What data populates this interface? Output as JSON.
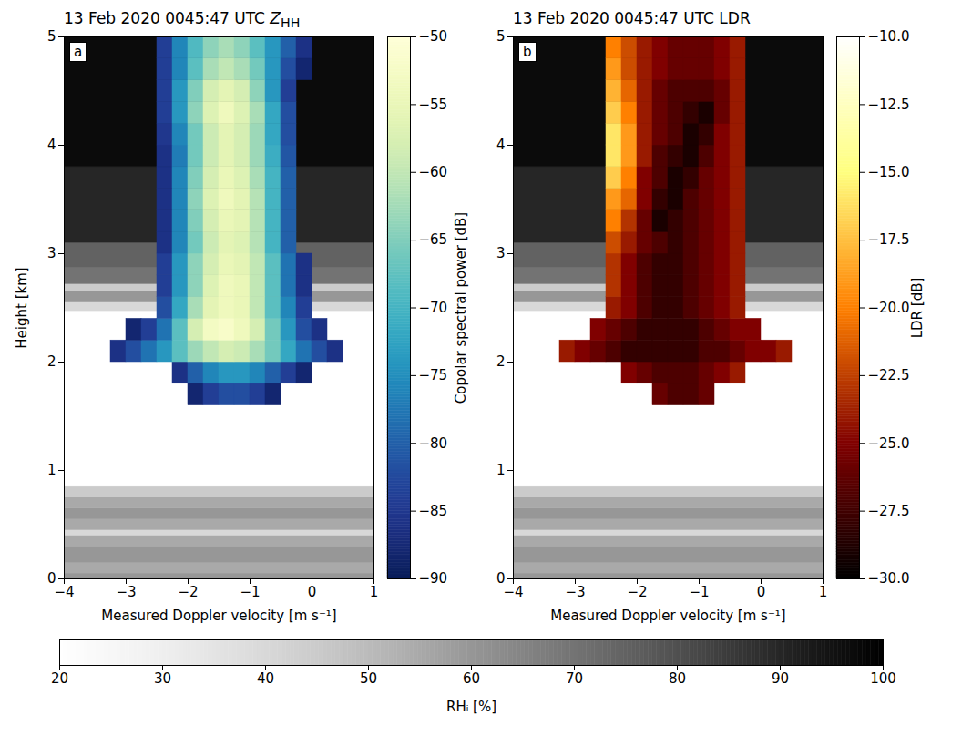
{
  "chart_data": [
    {
      "type": "heatmap",
      "panel": "a",
      "title": "13 Feb 2020 0045:47 UTC",
      "title_symbol": "Z",
      "title_symbol_subscript": "HH",
      "x_label": "Measured Doppler velocity [m s⁻¹]",
      "y_label": "Height [km]",
      "xlim": [
        -4,
        1
      ],
      "xticks": [
        -4,
        -3,
        -2,
        -1,
        0,
        1
      ],
      "ylim": [
        0,
        5
      ],
      "yticks": [
        0,
        1,
        2,
        3,
        4,
        5
      ],
      "velocities": [
        -3.125,
        -2.875,
        -2.625,
        -2.375,
        -2.125,
        -1.875,
        -1.625,
        -1.375,
        -1.125,
        -0.875,
        -0.625,
        -0.375,
        -0.125,
        0.125,
        0.375,
        0.625
      ],
      "heights": [
        1.7,
        1.9,
        2.1,
        2.3,
        2.5,
        2.7,
        2.9,
        3.1,
        3.3,
        3.5,
        3.7,
        3.9,
        4.1,
        4.3,
        4.5,
        4.7,
        4.9
      ],
      "values": [
        [
          null,
          null,
          null,
          null,
          null,
          -88,
          -84,
          -82,
          -82,
          -84,
          -88,
          null,
          null,
          null,
          null,
          null
        ],
        [
          null,
          null,
          null,
          null,
          -86,
          -80,
          -76,
          -74,
          -74,
          -76,
          -80,
          -84,
          -88,
          null,
          null,
          null
        ],
        [
          -86,
          -82,
          -78,
          -74,
          -68,
          -63,
          -60,
          -58,
          -59,
          -62,
          -66,
          -72,
          -78,
          -82,
          -86,
          null
        ],
        [
          null,
          -88,
          -84,
          -78,
          -68,
          -58,
          -53,
          -52,
          -54,
          -58,
          -66,
          -74,
          -82,
          -86,
          null,
          null
        ],
        [
          null,
          null,
          null,
          -82,
          -72,
          -62,
          -56,
          -54,
          -55,
          -60,
          -68,
          -76,
          -84,
          null,
          null,
          null
        ],
        [
          null,
          null,
          null,
          -84,
          -74,
          -64,
          -57,
          -54,
          -55,
          -60,
          -68,
          -78,
          -86,
          null,
          null,
          null
        ],
        [
          null,
          null,
          null,
          -84,
          -74,
          -64,
          -58,
          -55,
          -56,
          -60,
          -68,
          -78,
          -86,
          null,
          null,
          null
        ],
        [
          null,
          null,
          null,
          -86,
          -76,
          -66,
          -59,
          -56,
          -57,
          -61,
          -70,
          -80,
          null,
          null,
          null,
          null
        ],
        [
          null,
          null,
          null,
          -86,
          -76,
          -65,
          -58,
          -55,
          -56,
          -61,
          -70,
          -80,
          null,
          null,
          null,
          null
        ],
        [
          null,
          null,
          null,
          -86,
          -76,
          -64,
          -57,
          -54,
          -56,
          -61,
          -70,
          -80,
          null,
          null,
          null,
          null
        ],
        [
          null,
          null,
          null,
          -86,
          -76,
          -65,
          -58,
          -55,
          -57,
          -62,
          -70,
          -80,
          null,
          null,
          null,
          null
        ],
        [
          null,
          null,
          null,
          -86,
          -77,
          -66,
          -59,
          -56,
          -58,
          -63,
          -71,
          -81,
          null,
          null,
          null,
          null
        ],
        [
          null,
          null,
          null,
          -85,
          -76,
          -66,
          -59,
          -56,
          -58,
          -63,
          -72,
          -82,
          null,
          null,
          null,
          null
        ],
        [
          null,
          null,
          null,
          -84,
          -74,
          -64,
          -57,
          -54,
          -57,
          -62,
          -72,
          -82,
          null,
          null,
          null,
          null
        ],
        [
          null,
          null,
          null,
          -84,
          -74,
          -65,
          -58,
          -56,
          -58,
          -64,
          -74,
          -84,
          null,
          null,
          null,
          null
        ],
        [
          null,
          null,
          null,
          -84,
          -76,
          -68,
          -62,
          -60,
          -62,
          -66,
          -74,
          -82,
          -88,
          null,
          null,
          null
        ],
        [
          null,
          null,
          null,
          -84,
          -76,
          -69,
          -64,
          -62,
          -64,
          -68,
          -74,
          -80,
          -86,
          null,
          null,
          null
        ]
      ],
      "colorbar": {
        "label": "Copolar spectral power [dB]",
        "range": [
          -90,
          -50
        ],
        "ticks": [
          -90,
          -85,
          -80,
          -75,
          -70,
          -65,
          -60,
          -55,
          -50
        ]
      }
    },
    {
      "type": "heatmap",
      "panel": "b",
      "title": "13 Feb 2020 0045:47 UTC LDR",
      "x_label": "Measured Doppler velocity [m s⁻¹]",
      "xlim": [
        -4,
        1
      ],
      "xticks": [
        -4,
        -3,
        -2,
        -1,
        0,
        1
      ],
      "ylim": [
        0,
        5
      ],
      "yticks": [
        0,
        1,
        2,
        3,
        4,
        5
      ],
      "velocities": [
        -3.125,
        -2.875,
        -2.625,
        -2.375,
        -2.125,
        -1.875,
        -1.625,
        -1.375,
        -1.125,
        -0.875,
        -0.625,
        -0.375,
        -0.125,
        0.125,
        0.375,
        0.625
      ],
      "heights": [
        1.7,
        1.9,
        2.1,
        2.3,
        2.5,
        2.7,
        2.9,
        3.1,
        3.3,
        3.5,
        3.7,
        3.9,
        4.1,
        4.3,
        4.5,
        4.7,
        4.9
      ],
      "values": [
        [
          null,
          null,
          null,
          null,
          null,
          null,
          -26,
          -27,
          -27,
          -26,
          null,
          null,
          null,
          null,
          null,
          null
        ],
        [
          null,
          null,
          null,
          null,
          -25,
          -26,
          -27,
          -27,
          -27,
          -26,
          -25,
          -24,
          null,
          null,
          null,
          null
        ],
        [
          -24,
          -25,
          -26,
          -27,
          -28,
          -28,
          -28,
          -28,
          -28,
          -27,
          -27,
          -26,
          -25,
          -25,
          -24,
          null
        ],
        [
          null,
          null,
          -25,
          -26,
          -27,
          -28,
          -28,
          -28,
          -28,
          -27,
          -26,
          -25,
          -25,
          null,
          null,
          null
        ],
        [
          null,
          null,
          null,
          -24,
          -25,
          -27,
          -28,
          -28,
          -27,
          -26,
          -25,
          -24,
          null,
          null,
          null,
          null
        ],
        [
          null,
          null,
          null,
          -23,
          -25,
          -27,
          -28,
          -28,
          -27,
          -26,
          -25,
          -24,
          null,
          null,
          null,
          null
        ],
        [
          null,
          null,
          null,
          -23,
          -25,
          -27,
          -28,
          -28,
          -27,
          -26,
          -25,
          -24,
          null,
          null,
          null,
          null
        ],
        [
          null,
          null,
          null,
          -22,
          -24,
          -26,
          -27,
          -28,
          -27,
          -26,
          -25,
          -24,
          null,
          null,
          null,
          null
        ],
        [
          null,
          null,
          null,
          -20,
          -23,
          -26,
          -29,
          -28,
          -27,
          -26,
          -25,
          -24,
          null,
          null,
          null,
          null
        ],
        [
          null,
          null,
          null,
          -19,
          -21,
          -25,
          -28,
          -29,
          -27,
          -26,
          -25,
          -24,
          null,
          null,
          null,
          null
        ],
        [
          null,
          null,
          null,
          -17,
          -20,
          -25,
          -27,
          -29,
          -28,
          -26,
          -25,
          -24,
          null,
          null,
          null,
          null
        ],
        [
          null,
          null,
          null,
          -16,
          -19,
          -24,
          -27,
          -28,
          -29,
          -27,
          -25,
          -24,
          null,
          null,
          null,
          null
        ],
        [
          null,
          null,
          null,
          -16,
          -19,
          -24,
          -26,
          -27,
          -29,
          -28,
          -25,
          -24,
          null,
          null,
          null,
          null
        ],
        [
          null,
          null,
          null,
          -17,
          -20,
          -24,
          -26,
          -27,
          -28,
          -29,
          -26,
          -24,
          null,
          null,
          null,
          null
        ],
        [
          null,
          null,
          null,
          -18,
          -21,
          -24,
          -26,
          -27,
          -27,
          -27,
          -26,
          -24,
          null,
          null,
          null,
          null
        ],
        [
          null,
          null,
          null,
          -19,
          -22,
          -24,
          -25,
          -26,
          -26,
          -26,
          -25,
          -24,
          null,
          null,
          null,
          null
        ],
        [
          null,
          null,
          null,
          -20,
          -22,
          -24,
          -25,
          -26,
          -26,
          -26,
          -25,
          -24,
          null,
          null,
          null,
          null
        ]
      ],
      "colorbar": {
        "label": "LDR [dB]",
        "range": [
          -30,
          -10
        ],
        "ticks": [
          {
            "value": -30,
            "label": "−30.0"
          },
          {
            "value": -27.5,
            "label": "−27.5"
          },
          {
            "value": -25,
            "label": "−25.0"
          },
          {
            "value": -22.5,
            "label": "−22.5"
          },
          {
            "value": -20,
            "label": "−20.0"
          },
          {
            "value": -17.5,
            "label": "−17.5"
          },
          {
            "value": -15,
            "label": "−15.0"
          },
          {
            "value": -12.5,
            "label": "−12.5"
          },
          {
            "value": -10,
            "label": "−10.0"
          }
        ]
      }
    }
  ],
  "background": {
    "label": "RHᵢ [%]",
    "range": [
      20,
      100
    ],
    "ticks": [
      20,
      30,
      40,
      50,
      60,
      70,
      80,
      90,
      100
    ],
    "height_edges": [
      0,
      0.05,
      0.15,
      0.3,
      0.4,
      0.45,
      0.55,
      0.65,
      0.75,
      0.85,
      2.47,
      2.55,
      2.65,
      2.72,
      2.87,
      3.1,
      3.8,
      5
    ],
    "values": [
      60,
      55,
      60,
      55,
      40,
      55,
      60,
      55,
      45,
      20,
      40,
      60,
      45,
      70,
      75,
      90,
      97
    ]
  }
}
